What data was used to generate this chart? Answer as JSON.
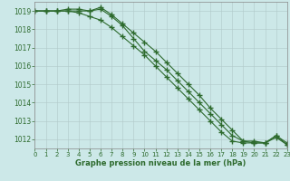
{
  "x": [
    0,
    1,
    2,
    3,
    4,
    5,
    6,
    7,
    8,
    9,
    10,
    11,
    12,
    13,
    14,
    15,
    16,
    17,
    18,
    19,
    20,
    21,
    22,
    23
  ],
  "line1": [
    1019.0,
    1019.0,
    1019.0,
    1019.0,
    1019.0,
    1019.0,
    1019.2,
    1018.8,
    1018.3,
    1017.8,
    1017.3,
    1016.8,
    1016.2,
    1015.6,
    1015.0,
    1014.4,
    1013.7,
    1013.1,
    1012.5,
    1011.9,
    1011.8,
    1011.8,
    1012.1,
    1011.7
  ],
  "line2": [
    1019.0,
    1019.0,
    1019.0,
    1019.0,
    1018.9,
    1018.7,
    1018.5,
    1018.1,
    1017.6,
    1017.1,
    1016.6,
    1016.0,
    1015.4,
    1014.8,
    1014.2,
    1013.6,
    1013.0,
    1012.4,
    1011.9,
    1011.8,
    1011.8,
    1011.8,
    1012.2,
    1011.7
  ],
  "line3": [
    1019.0,
    1019.0,
    1019.0,
    1019.1,
    1019.1,
    1019.0,
    1019.1,
    1018.7,
    1018.2,
    1017.5,
    1016.8,
    1016.3,
    1015.8,
    1015.2,
    1014.6,
    1014.0,
    1013.4,
    1012.8,
    1012.2,
    1011.9,
    1011.9,
    1011.8,
    1012.2,
    1011.8
  ],
  "ylim": [
    1011.5,
    1019.5
  ],
  "xlim": [
    0,
    23
  ],
  "yticks": [
    1012,
    1013,
    1014,
    1015,
    1016,
    1017,
    1018,
    1019
  ],
  "xticks": [
    0,
    1,
    2,
    3,
    4,
    5,
    6,
    7,
    8,
    9,
    10,
    11,
    12,
    13,
    14,
    15,
    16,
    17,
    18,
    19,
    20,
    21,
    22,
    23
  ],
  "line_color": "#2d6a2d",
  "bg_color": "#cce8e8",
  "grid_color": "#b0c8c8",
  "grid_color_minor": "#c8dede",
  "xlabel": "Graphe pression niveau de la mer (hPa)",
  "xlabel_color": "#2d6a2d",
  "marker": "+",
  "marker_size": 4,
  "linewidth": 0.8
}
